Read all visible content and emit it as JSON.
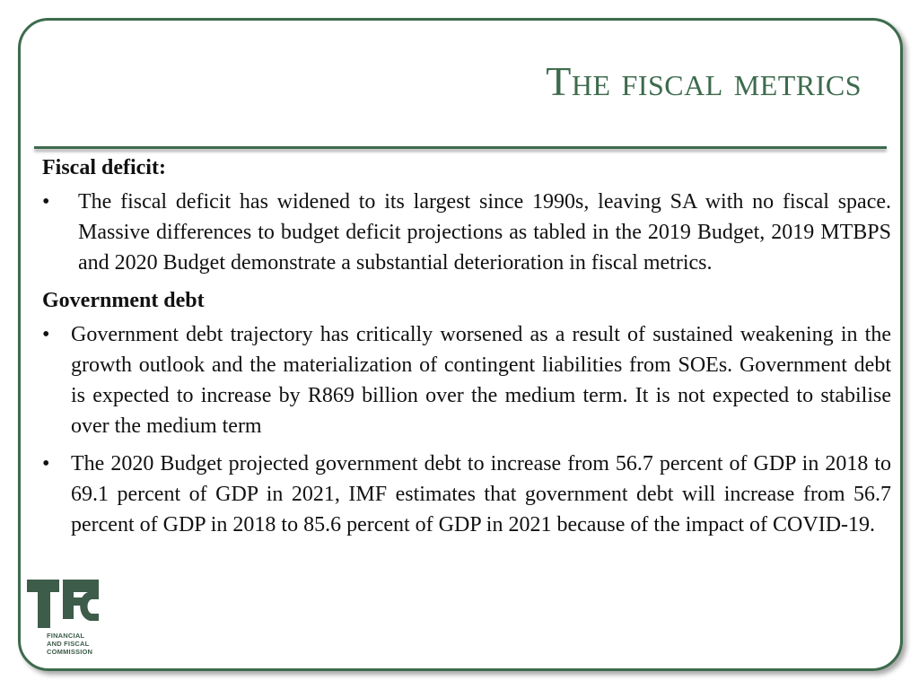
{
  "slide": {
    "title": "The fiscal metrics",
    "sections": [
      {
        "heading": "Fiscal deficit:",
        "bullets": [
          "The fiscal deficit has widened to its largest since 1990s, leaving SA with no fiscal space. Massive differences to budget deficit projections as tabled in the 2019 Budget, 2019 MTBPS and 2020 Budget demonstrate a substantial deterioration in fiscal metrics."
        ]
      },
      {
        "heading": "Government debt",
        "bullets": [
          "Government debt trajectory has critically worsened as a result of sustained weakening in the growth outlook and the materialization of contingent liabilities from SOEs. Government debt is expected to increase by R869 billion over the medium term. It is not expected to stabilise over the medium term",
          "The 2020 Budget projected government debt to increase from 56.7 percent of GDP in 2018 to 69.1 percent of GDP in 2021, IMF estimates that government debt will increase from 56.7 percent of GDP in 2018 to 85.6 percent of GDP in 2021 because of the impact of COVID-19."
        ]
      }
    ],
    "bullet_symbol": "•"
  },
  "logo": {
    "lines": [
      "FINANCIAL",
      "AND FISCAL",
      "COMMISSION"
    ],
    "icon": "ffc-logo-icon"
  },
  "colors": {
    "accent": "#3d6b4d",
    "logo": "#3d5c4a",
    "text": "#111111"
  }
}
